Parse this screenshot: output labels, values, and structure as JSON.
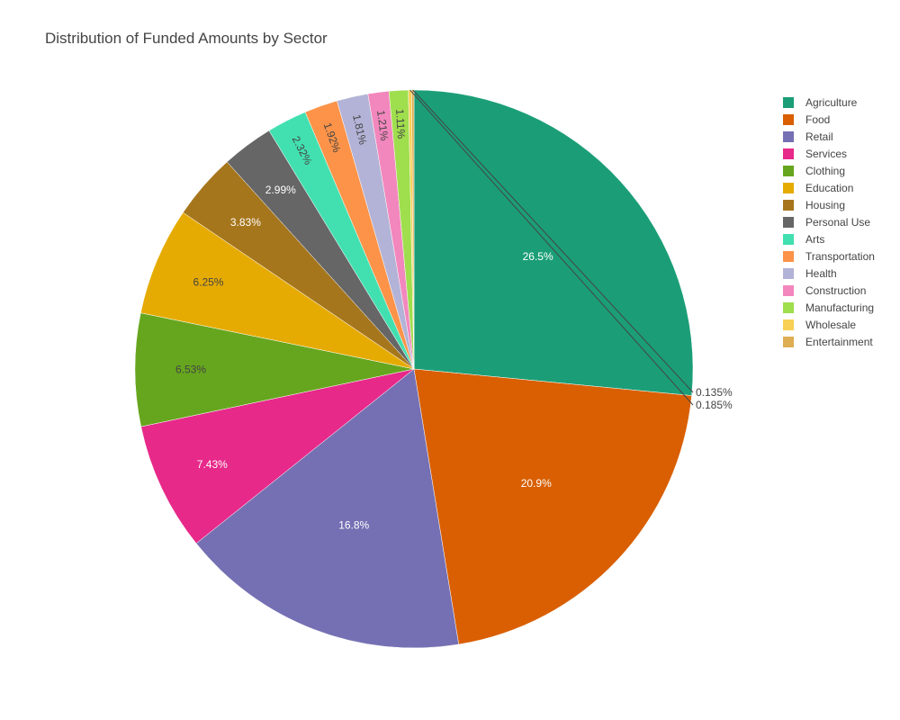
{
  "chart_data": {
    "type": "pie",
    "title": "Distribution of Funded Amounts by Sector",
    "legend_position": "right",
    "slices": [
      {
        "name": "Agriculture",
        "value": 26.5,
        "label": "26.5%",
        "color": "#1b9e77",
        "label_color": "#ffffff"
      },
      {
        "name": "Food",
        "value": 20.9,
        "label": "20.9%",
        "color": "#d95f02",
        "label_color": "#ffffff"
      },
      {
        "name": "Retail",
        "value": 16.8,
        "label": "16.8%",
        "color": "#7570b3",
        "label_color": "#ffffff"
      },
      {
        "name": "Services",
        "value": 7.43,
        "label": "7.43%",
        "color": "#e7298a",
        "label_color": "#ffffff"
      },
      {
        "name": "Clothing",
        "value": 6.53,
        "label": "6.53%",
        "color": "#66a61e",
        "label_color": "#444444"
      },
      {
        "name": "Education",
        "value": 6.25,
        "label": "6.25%",
        "color": "#e6ab02",
        "label_color": "#444444"
      },
      {
        "name": "Housing",
        "value": 3.83,
        "label": "3.83%",
        "color": "#a6761d",
        "label_color": "#ffffff"
      },
      {
        "name": "Personal Use",
        "value": 2.99,
        "label": "2.99%",
        "color": "#666666",
        "label_color": "#ffffff"
      },
      {
        "name": "Arts",
        "value": 2.32,
        "label": "2.32%",
        "color": "#42e0b0",
        "label_color": "#444444"
      },
      {
        "name": "Transportation",
        "value": 1.92,
        "label": "1.92%",
        "color": "#fc9348",
        "label_color": "#444444"
      },
      {
        "name": "Health",
        "value": 1.81,
        "label": "1.81%",
        "color": "#b3b3d7",
        "label_color": "#444444"
      },
      {
        "name": "Construction",
        "value": 1.21,
        "label": "1.21%",
        "color": "#f287bd",
        "label_color": "#444444"
      },
      {
        "name": "Manufacturing",
        "value": 1.11,
        "label": "1.11%",
        "color": "#9fde4d",
        "label_color": "#444444"
      },
      {
        "name": "Wholesale",
        "value": 0.185,
        "label": "0.185%",
        "color": "#f8d055",
        "label_color": "#444444"
      },
      {
        "name": "Entertainment",
        "value": 0.135,
        "label": "0.135%",
        "color": "#ddae52",
        "label_color": "#444444"
      }
    ]
  }
}
